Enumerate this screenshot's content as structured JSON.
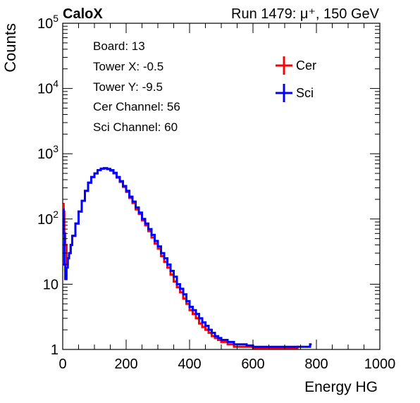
{
  "header": {
    "left_title": "CaloX",
    "right_title": "Run 1479:   μ⁺, 150 GeV"
  },
  "info": {
    "lines": [
      "Board: 13",
      "Tower X: -0.5",
      "Tower Y: -9.5",
      "Cer Channel: 56",
      "Sci Channel: 60"
    ]
  },
  "colors": {
    "cer": "#ff0000",
    "sci": "#0000ff"
  },
  "chart_data": {
    "type": "line",
    "title": "",
    "xlabel": "Energy HG",
    "ylabel": "Counts",
    "xlim": [
      0,
      1000
    ],
    "ylim": [
      1,
      100000
    ],
    "y_scale": "log",
    "x_ticks": [
      0,
      200,
      400,
      600,
      800,
      1000
    ],
    "x_tick_labels": [
      "0",
      "200",
      "400",
      "600",
      "800",
      "1000"
    ],
    "y_ticks": [
      1,
      10,
      100,
      1000,
      10000,
      100000
    ],
    "y_tick_labels": [
      {
        "base": "1",
        "exp": ""
      },
      {
        "base": "10",
        "exp": ""
      },
      {
        "base": "10",
        "exp": "2"
      },
      {
        "base": "10",
        "exp": "3"
      },
      {
        "base": "10",
        "exp": "4"
      },
      {
        "base": "10",
        "exp": "5"
      }
    ],
    "legend_position": "top-right",
    "series": [
      {
        "name": "Cer",
        "color": "#ff0000",
        "x": [
          1,
          3,
          5,
          8,
          12,
          16,
          20,
          25,
          30,
          40,
          50,
          60,
          70,
          80,
          90,
          100,
          110,
          120,
          130,
          140,
          150,
          160,
          170,
          180,
          190,
          200,
          210,
          220,
          230,
          240,
          250,
          260,
          270,
          280,
          290,
          300,
          310,
          320,
          330,
          340,
          350,
          360,
          370,
          380,
          390,
          400,
          410,
          420,
          430,
          440,
          450,
          460,
          470,
          480,
          490,
          500,
          520,
          540,
          560,
          580,
          600,
          620,
          740
        ],
        "y": [
          170,
          130,
          60,
          40,
          20,
          25,
          30,
          40,
          55,
          85,
          130,
          190,
          270,
          360,
          440,
          500,
          560,
          590,
          600,
          580,
          550,
          500,
          430,
          370,
          310,
          260,
          210,
          175,
          140,
          120,
          95,
          80,
          65,
          52,
          42,
          35,
          27,
          22,
          18,
          14,
          11,
          9,
          7.5,
          6,
          5,
          4,
          3.5,
          3,
          2.5,
          2.2,
          2,
          1.8,
          1.6,
          1.5,
          1.4,
          1.3,
          1.2,
          1.1,
          1.1,
          1.1,
          1.05,
          1.05,
          1.1
        ]
      },
      {
        "name": "Sci",
        "color": "#0000ff",
        "x": [
          1,
          3,
          5,
          8,
          12,
          16,
          20,
          25,
          30,
          40,
          50,
          60,
          70,
          80,
          90,
          100,
          110,
          120,
          130,
          140,
          150,
          160,
          170,
          180,
          190,
          200,
          210,
          220,
          230,
          240,
          250,
          260,
          270,
          280,
          290,
          300,
          310,
          320,
          330,
          340,
          350,
          360,
          370,
          380,
          390,
          400,
          410,
          420,
          430,
          440,
          450,
          460,
          470,
          480,
          490,
          500,
          520,
          540,
          560,
          580,
          600,
          620,
          780
        ],
        "y": [
          140,
          60,
          20,
          12,
          18,
          25,
          30,
          40,
          55,
          85,
          130,
          190,
          270,
          360,
          440,
          500,
          560,
          590,
          600,
          585,
          560,
          510,
          440,
          380,
          320,
          270,
          220,
          185,
          150,
          125,
          100,
          85,
          70,
          57,
          46,
          38,
          30,
          25,
          20,
          16,
          13,
          10,
          8.5,
          7,
          5.5,
          4.5,
          4,
          3.5,
          3,
          2.6,
          2.3,
          2,
          1.8,
          1.6,
          1.5,
          1.4,
          1.3,
          1.2,
          1.2,
          1.15,
          1.1,
          1.1,
          1.2
        ]
      }
    ]
  }
}
